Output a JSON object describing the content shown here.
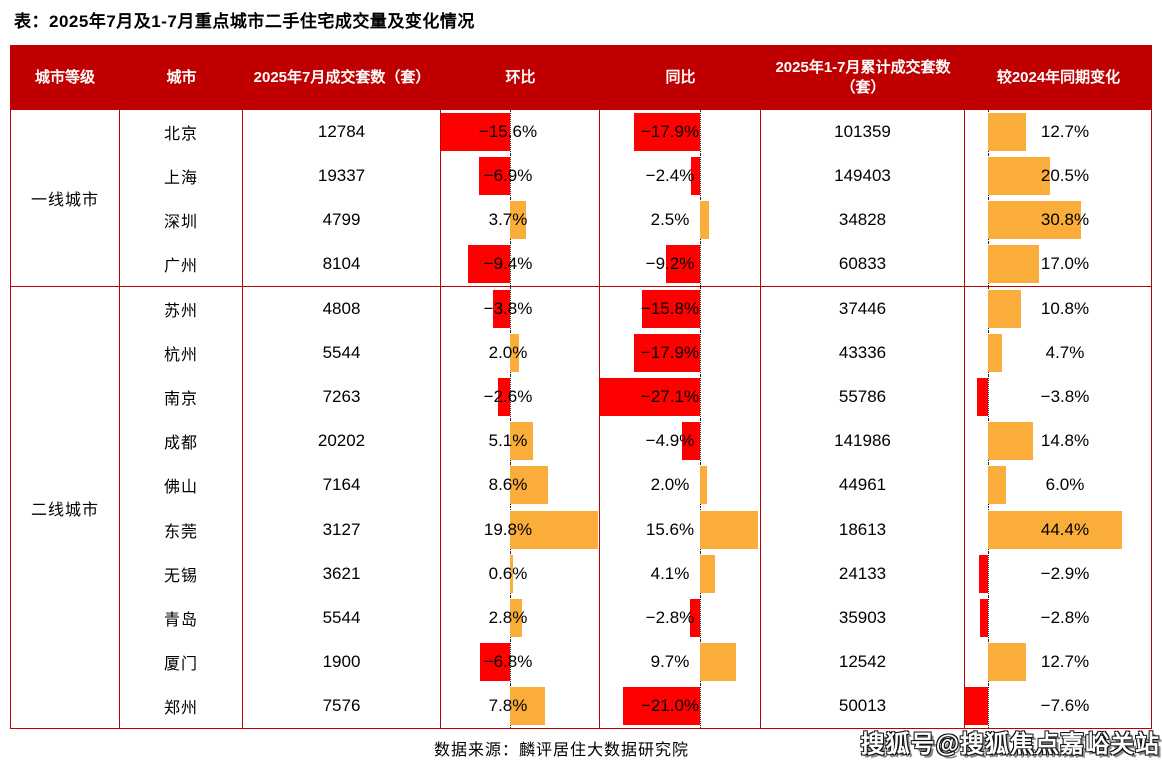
{
  "title": "表：2025年7月及1-7月重点城市二手住宅成交量及变化情况",
  "source": "数据来源：麟评居住大数据研究院",
  "watermark": "搜狐号@搜狐焦点嘉峪关站",
  "colors": {
    "header_bg": "#C00000",
    "table_border": "#C00000",
    "bar_negative": "#FF0000",
    "bar_positive": "#FAAD3A",
    "header_text": "#FFFFFF",
    "body_text": "#000000"
  },
  "chart_data": {
    "type": "table",
    "title": "2025年7月及1-7月重点城市二手住宅成交量及变化情况",
    "columns": [
      "城市等级",
      "城市",
      "2025年7月成交套数（套）",
      "环比",
      "同比",
      "2025年1-7月累计成交套数（套）",
      "较2024年同期变化"
    ],
    "bar_axes": {
      "mom": {
        "min": -15.6,
        "max": 19.8,
        "unit": "%"
      },
      "yoy": {
        "min": -27.1,
        "max": 15.6,
        "unit": "%"
      },
      "chg": {
        "min": -7.6,
        "max": 44.4,
        "unit": "%"
      }
    },
    "groups": [
      {
        "tier": "一线城市",
        "rows": [
          {
            "city": "北京",
            "jul_sales": "12784",
            "mom": -15.6,
            "mom_label": "−15.6%",
            "yoy": -17.9,
            "yoy_label": "−17.9%",
            "cum_sales": "101359",
            "chg": 12.7,
            "chg_label": "12.7%"
          },
          {
            "city": "上海",
            "jul_sales": "19337",
            "mom": -6.9,
            "mom_label": "−6.9%",
            "yoy": -2.4,
            "yoy_label": "−2.4%",
            "cum_sales": "149403",
            "chg": 20.5,
            "chg_label": "20.5%"
          },
          {
            "city": "深圳",
            "jul_sales": "4799",
            "mom": 3.7,
            "mom_label": "3.7%",
            "yoy": 2.5,
            "yoy_label": "2.5%",
            "cum_sales": "34828",
            "chg": 30.8,
            "chg_label": "30.8%"
          },
          {
            "city": "广州",
            "jul_sales": "8104",
            "mom": -9.4,
            "mom_label": "−9.4%",
            "yoy": -9.2,
            "yoy_label": "−9.2%",
            "cum_sales": "60833",
            "chg": 17.0,
            "chg_label": "17.0%"
          }
        ]
      },
      {
        "tier": "二线城市",
        "rows": [
          {
            "city": "苏州",
            "jul_sales": "4808",
            "mom": -3.8,
            "mom_label": "−3.8%",
            "yoy": -15.8,
            "yoy_label": "−15.8%",
            "cum_sales": "37446",
            "chg": 10.8,
            "chg_label": "10.8%"
          },
          {
            "city": "杭州",
            "jul_sales": "5544",
            "mom": 2.0,
            "mom_label": "2.0%",
            "yoy": -17.9,
            "yoy_label": "−17.9%",
            "cum_sales": "43336",
            "chg": 4.7,
            "chg_label": "4.7%"
          },
          {
            "city": "南京",
            "jul_sales": "7263",
            "mom": -2.6,
            "mom_label": "−2.6%",
            "yoy": -27.1,
            "yoy_label": "−27.1%",
            "cum_sales": "55786",
            "chg": -3.8,
            "chg_label": "−3.8%"
          },
          {
            "city": "成都",
            "jul_sales": "20202",
            "mom": 5.1,
            "mom_label": "5.1%",
            "yoy": -4.9,
            "yoy_label": "−4.9%",
            "cum_sales": "141986",
            "chg": 14.8,
            "chg_label": "14.8%"
          },
          {
            "city": "佛山",
            "jul_sales": "7164",
            "mom": 8.6,
            "mom_label": "8.6%",
            "yoy": 2.0,
            "yoy_label": "2.0%",
            "cum_sales": "44961",
            "chg": 6.0,
            "chg_label": "6.0%"
          },
          {
            "city": "东莞",
            "jul_sales": "3127",
            "mom": 19.8,
            "mom_label": "19.8%",
            "yoy": 15.6,
            "yoy_label": "15.6%",
            "cum_sales": "18613",
            "chg": 44.4,
            "chg_label": "44.4%"
          },
          {
            "city": "无锡",
            "jul_sales": "3621",
            "mom": 0.6,
            "mom_label": "0.6%",
            "yoy": 4.1,
            "yoy_label": "4.1%",
            "cum_sales": "24133",
            "chg": -2.9,
            "chg_label": "−2.9%"
          },
          {
            "city": "青岛",
            "jul_sales": "5544",
            "mom": 2.8,
            "mom_label": "2.8%",
            "yoy": -2.8,
            "yoy_label": "−2.8%",
            "cum_sales": "35903",
            "chg": -2.8,
            "chg_label": "−2.8%"
          },
          {
            "city": "厦门",
            "jul_sales": "1900",
            "mom": -6.8,
            "mom_label": "−6.8%",
            "yoy": 9.7,
            "yoy_label": "9.7%",
            "cum_sales": "12542",
            "chg": 12.7,
            "chg_label": "12.7%"
          },
          {
            "city": "郑州",
            "jul_sales": "7576",
            "mom": 7.8,
            "mom_label": "7.8%",
            "yoy": -21.0,
            "yoy_label": "−21.0%",
            "cum_sales": "50013",
            "chg": -7.6,
            "chg_label": "−7.6%"
          }
        ]
      }
    ]
  }
}
